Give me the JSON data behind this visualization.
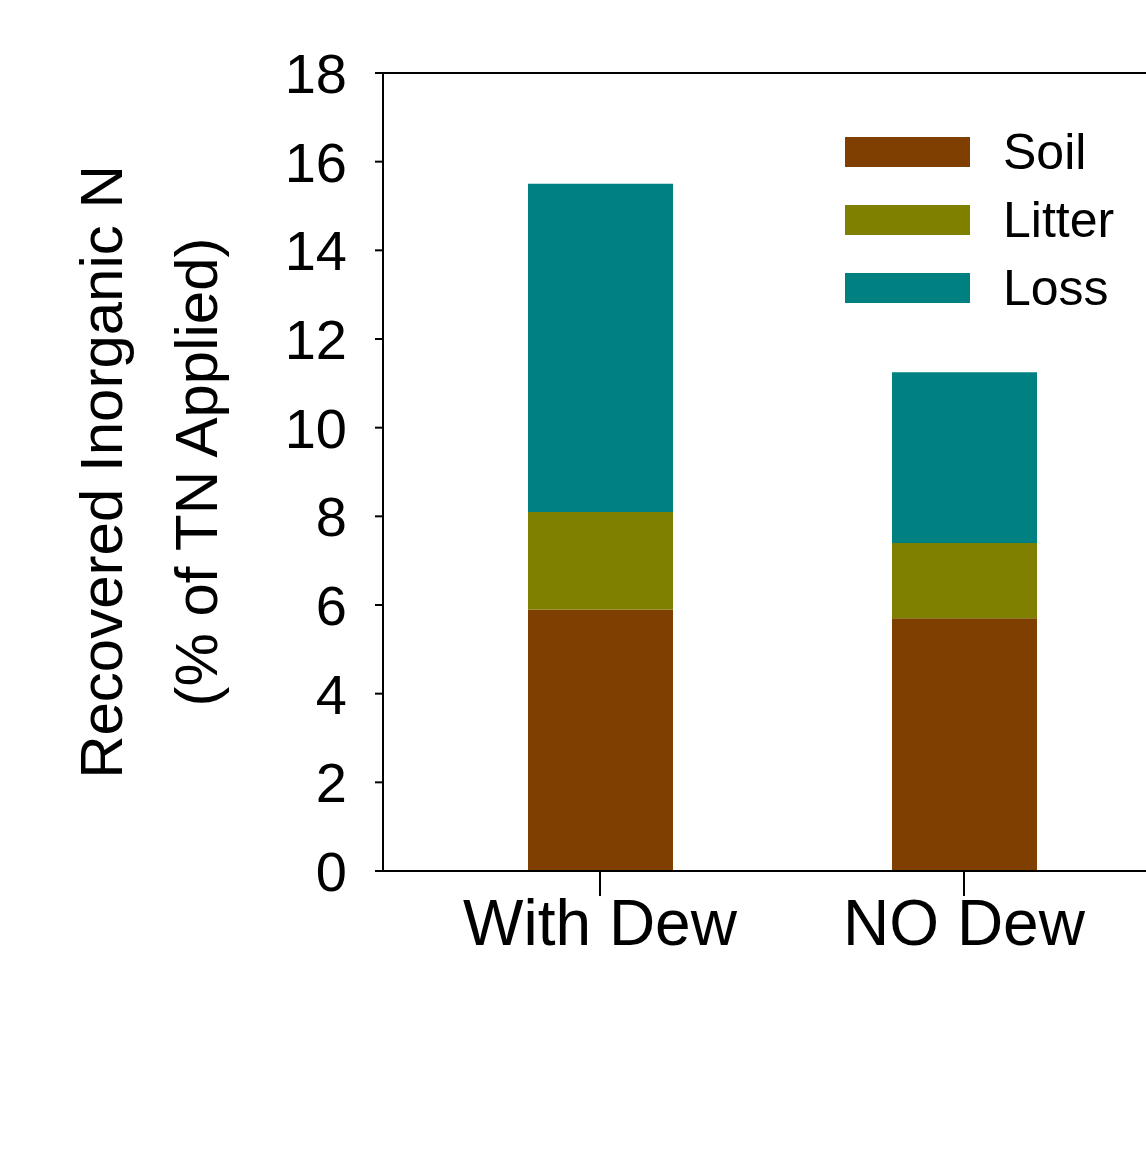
{
  "chart_data": {
    "type": "bar",
    "stacked": true,
    "ylabel": "Recovered Inorganic N\n(% of TN Applied)",
    "categories": [
      "With Dew",
      "NO Dew"
    ],
    "series": [
      {
        "name": "Soil",
        "color": "#7f3f00",
        "values": [
          5.9,
          5.7
        ]
      },
      {
        "name": "Litter",
        "color": "#808000",
        "values": [
          2.2,
          1.7
        ]
      },
      {
        "name": "Loss",
        "color": "#008080",
        "values": [
          7.4,
          3.85
        ]
      }
    ],
    "ylim": [
      0,
      18
    ],
    "yticks": [
      0,
      2,
      4,
      6,
      8,
      10,
      12,
      14,
      16,
      18
    ],
    "legend": "top right",
    "grid": false
  }
}
